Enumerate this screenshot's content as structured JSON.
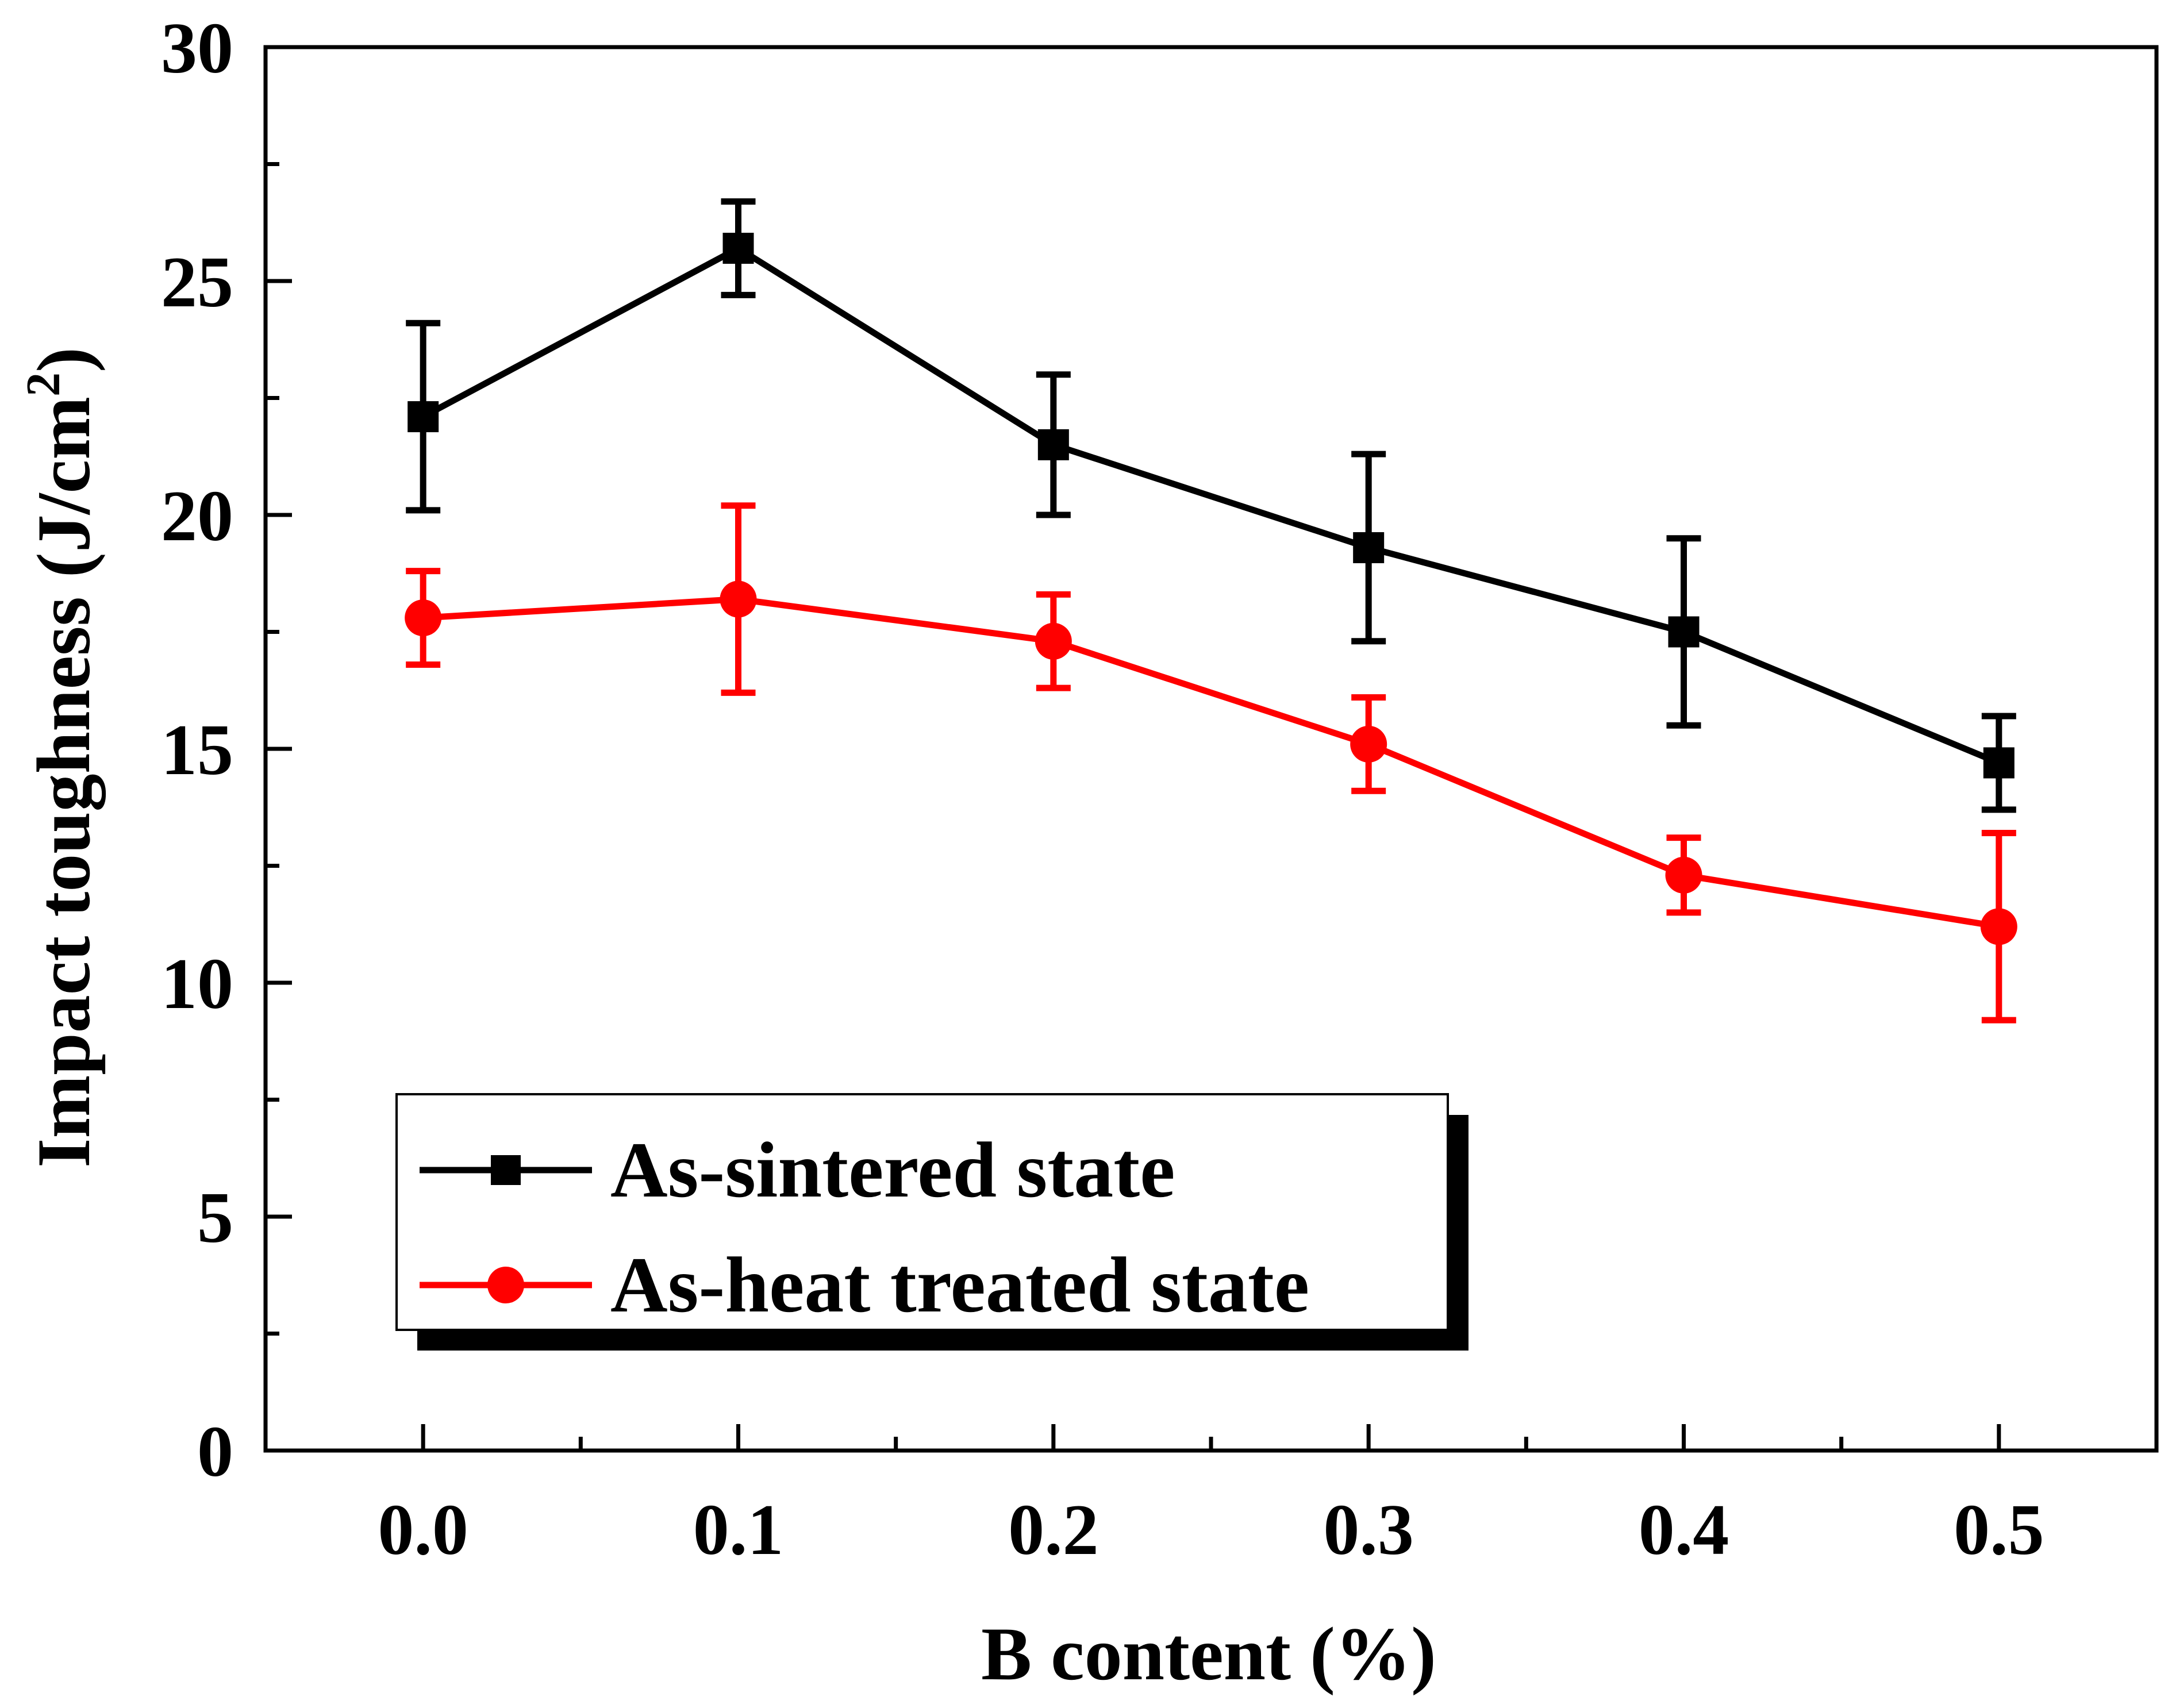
{
  "chart_data": {
    "type": "line",
    "title": "",
    "xlabel": "B content (%)",
    "ylabel_main": "Impact toughness (J/cm",
    "ylabel_sup": "2",
    "ylabel_close": ")",
    "xlim": [
      -0.05,
      0.55
    ],
    "ylim": [
      0,
      30
    ],
    "x": [
      0.0,
      0.1,
      0.2,
      0.3,
      0.4,
      0.5
    ],
    "x_tick_labels": [
      "0.0",
      "0.1",
      "0.2",
      "0.3",
      "0.4",
      "0.5"
    ],
    "y_ticks": [
      0,
      5,
      10,
      15,
      20,
      25,
      30
    ],
    "y_tick_labels": [
      "0",
      "5",
      "10",
      "15",
      "20",
      "25",
      "30"
    ],
    "grid": false,
    "legend_position": "bottom-left",
    "series": [
      {
        "name": "As-sintered state",
        "color": "#000000",
        "marker": "square",
        "values": [
          22.1,
          25.7,
          21.5,
          19.3,
          17.5,
          14.7
        ],
        "errors": [
          2.0,
          1.0,
          1.5,
          2.0,
          2.0,
          1.0
        ]
      },
      {
        "name": "As-heat treated state",
        "color": "#ff0000",
        "marker": "circle",
        "values": [
          17.8,
          18.2,
          17.3,
          15.1,
          12.3,
          11.2
        ],
        "errors": [
          1.0,
          2.0,
          1.0,
          1.0,
          0.8,
          2.0
        ]
      }
    ]
  }
}
